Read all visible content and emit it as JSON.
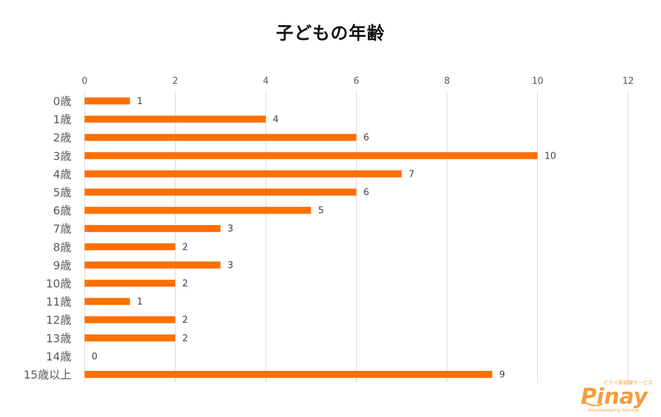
{
  "chart_data": {
    "type": "bar",
    "orientation": "horizontal",
    "title": "子どもの年齢",
    "xlabel": "",
    "ylabel": "",
    "categories": [
      "0歳",
      "1歳",
      "2歳",
      "3歳",
      "4歳",
      "5歳",
      "6歳",
      "7歳",
      "8歳",
      "9歳",
      "10歳",
      "11歳",
      "12歳",
      "13歳",
      "14歳",
      "15歳以上"
    ],
    "values": [
      1,
      4,
      6,
      10,
      7,
      6,
      5,
      3,
      2,
      3,
      2,
      1,
      2,
      2,
      0,
      9
    ],
    "xlim": [
      0,
      12
    ],
    "xticks": [
      0,
      2,
      4,
      6,
      8,
      10,
      12
    ],
    "x_axis_position": "top",
    "grid": true,
    "legend": "none",
    "data_labels": true,
    "colors": {
      "bar": "#FF6F00",
      "grid": "#D9D9D9",
      "tick_label": "#595959",
      "category_label": "#595959",
      "data_label": "#404040"
    }
  },
  "logo": {
    "tagline": "ピナイ家政婦サービス",
    "name": "Pinay",
    "subtitle": "Housekeeping Service",
    "color": "#F39C3C"
  }
}
